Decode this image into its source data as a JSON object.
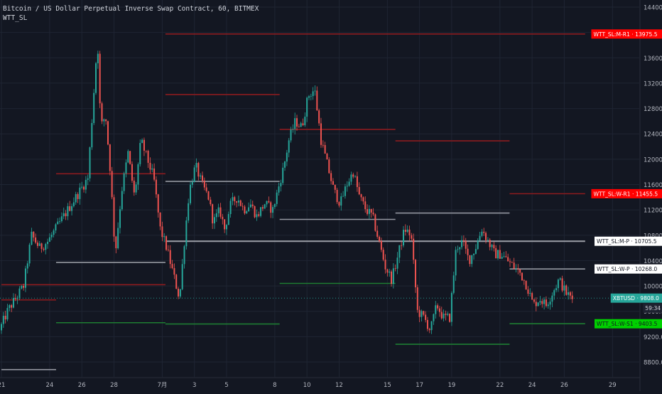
{
  "header": {
    "symbol_line": "Bitcoin / US Dollar Perpetual Inverse Swap Contract, 60, BITMEX",
    "indicator_name": "WTT_SL"
  },
  "colors": {
    "background": "#131722",
    "grid": "#1f2533",
    "up": "#26a69a",
    "down": "#ef5350",
    "resistance_line": "#8b1b1f",
    "pivot_line": "#9598a1",
    "support_line": "#1e7d32",
    "text": "#b2b5be",
    "red_tag": "#ff0000",
    "green_tag": "#00d000",
    "teal_tag": "#26a69a"
  },
  "chart_data": {
    "type": "candlestick",
    "symbol": "XBTUSD",
    "timeframe": "60",
    "exchange": "BITMEX",
    "price_range": [
      8550,
      14600
    ],
    "price_ticks": [
      8800.0,
      9200.0,
      9600.0,
      10000.0,
      10400.0,
      10800.0,
      11200.0,
      11600.0,
      12000.0,
      12400.0,
      12800.0,
      13200.0,
      13600.0,
      14000.0,
      14400.0
    ],
    "x_ticks": [
      {
        "day": 0,
        "label": "21"
      },
      {
        "day": 3,
        "label": "24"
      },
      {
        "day": 5,
        "label": "26"
      },
      {
        "day": 7,
        "label": "28"
      },
      {
        "day": 10,
        "label": "7月"
      },
      {
        "day": 12,
        "label": "3"
      },
      {
        "day": 14,
        "label": "5"
      },
      {
        "day": 17,
        "label": "8"
      },
      {
        "day": 19,
        "label": "10"
      },
      {
        "day": 21,
        "label": "12"
      },
      {
        "day": 24,
        "label": "15"
      },
      {
        "day": 26,
        "label": "17"
      },
      {
        "day": 28,
        "label": "19"
      },
      {
        "day": 31,
        "label": "22"
      },
      {
        "day": 33,
        "label": "24"
      },
      {
        "day": 35,
        "label": "26"
      },
      {
        "day": 38,
        "label": "29"
      }
    ],
    "price_path": [
      [
        0.0,
        9300
      ],
      [
        0.5,
        9600
      ],
      [
        1.0,
        9800
      ],
      [
        1.5,
        10000
      ],
      [
        2.0,
        10800
      ],
      [
        2.5,
        10600
      ],
      [
        3.0,
        10700
      ],
      [
        3.5,
        10900
      ],
      [
        4.0,
        11100
      ],
      [
        4.5,
        11300
      ],
      [
        5.0,
        11500
      ],
      [
        5.5,
        11700
      ],
      [
        5.8,
        12800
      ],
      [
        6.1,
        13900
      ],
      [
        6.3,
        12500
      ],
      [
        6.6,
        12700
      ],
      [
        6.9,
        11800
      ],
      [
        7.2,
        10500
      ],
      [
        7.6,
        11500
      ],
      [
        8.0,
        12100
      ],
      [
        8.4,
        11400
      ],
      [
        8.8,
        12300
      ],
      [
        9.2,
        12000
      ],
      [
        9.6,
        11700
      ],
      [
        10.0,
        10900
      ],
      [
        10.4,
        10600
      ],
      [
        10.8,
        10200
      ],
      [
        11.2,
        9800
      ],
      [
        11.5,
        10700
      ],
      [
        11.8,
        11500
      ],
      [
        12.2,
        11900
      ],
      [
        12.6,
        11600
      ],
      [
        13.0,
        11400
      ],
      [
        13.3,
        11000
      ],
      [
        13.7,
        11200
      ],
      [
        14.0,
        10900
      ],
      [
        14.4,
        11300
      ],
      [
        14.8,
        11400
      ],
      [
        15.2,
        11200
      ],
      [
        15.6,
        11300
      ],
      [
        16.0,
        11100
      ],
      [
        16.5,
        11300
      ],
      [
        17.0,
        11200
      ],
      [
        17.3,
        11500
      ],
      [
        17.7,
        11900
      ],
      [
        18.0,
        12300
      ],
      [
        18.4,
        12600
      ],
      [
        18.8,
        12500
      ],
      [
        19.2,
        13000
      ],
      [
        19.6,
        13100
      ],
      [
        20.0,
        12300
      ],
      [
        20.4,
        11900
      ],
      [
        20.8,
        11500
      ],
      [
        21.2,
        11300
      ],
      [
        21.6,
        11600
      ],
      [
        22.0,
        11800
      ],
      [
        22.4,
        11400
      ],
      [
        22.8,
        11200
      ],
      [
        23.2,
        11100
      ],
      [
        23.6,
        10700
      ],
      [
        24.0,
        10300
      ],
      [
        24.4,
        10100
      ],
      [
        24.8,
        10500
      ],
      [
        25.2,
        10900
      ],
      [
        25.6,
        10800
      ],
      [
        26.0,
        9600
      ],
      [
        26.4,
        9500
      ],
      [
        26.8,
        9300
      ],
      [
        27.2,
        9700
      ],
      [
        27.6,
        9500
      ],
      [
        28.0,
        9500
      ],
      [
        28.4,
        10600
      ],
      [
        28.8,
        10700
      ],
      [
        29.2,
        10400
      ],
      [
        29.6,
        10600
      ],
      [
        30.0,
        10900
      ],
      [
        30.4,
        10700
      ],
      [
        30.8,
        10500
      ],
      [
        31.2,
        10500
      ],
      [
        31.6,
        10400
      ],
      [
        32.0,
        10300
      ],
      [
        32.4,
        10200
      ],
      [
        32.8,
        10000
      ],
      [
        33.2,
        9700
      ],
      [
        33.6,
        9800
      ],
      [
        34.0,
        9700
      ],
      [
        34.4,
        9900
      ],
      [
        34.8,
        10100
      ],
      [
        35.2,
        9900
      ],
      [
        35.6,
        9800
      ]
    ],
    "levels": [
      {
        "name": "WTT_SL:M-R1",
        "value": 13975.5,
        "style": "resistance",
        "segments": [
          [
            10.2,
            36.3
          ]
        ],
        "label": "WTT_SL:M-R1 · 13975.5",
        "tag": "red"
      },
      {
        "name": "W-R1 (prev)",
        "value": 13020,
        "style": "resistance",
        "segments": [
          [
            10.2,
            17.3
          ]
        ]
      },
      {
        "name": "W-R1 (prev)",
        "value": 12470,
        "style": "resistance",
        "segments": [
          [
            17.3,
            24.5
          ]
        ]
      },
      {
        "name": "W-R1 (prev)",
        "value": 12290,
        "style": "resistance",
        "segments": [
          [
            24.5,
            31.6
          ]
        ]
      },
      {
        "name": "W-R1 (prev)",
        "value": 11770,
        "style": "resistance",
        "segments": [
          [
            3.4,
            10.2
          ]
        ]
      },
      {
        "name": "WTT_SL:W-R1",
        "value": 11455.5,
        "style": "resistance",
        "segments": [
          [
            31.6,
            36.3
          ]
        ],
        "label": "WTT_SL:W-R1 · 11455.5",
        "tag": "red"
      },
      {
        "name": "M-R (prev)",
        "value": 10020,
        "style": "resistance",
        "segments": [
          [
            0.0,
            10.2
          ]
        ]
      },
      {
        "name": "level",
        "value": 9780,
        "style": "resistance",
        "segments": [
          [
            0.0,
            3.4
          ]
        ]
      },
      {
        "name": "W-P (prev)",
        "value": 11650,
        "style": "pivot",
        "segments": [
          [
            10.2,
            17.3
          ]
        ]
      },
      {
        "name": "W-P (prev)",
        "value": 11150,
        "style": "pivot",
        "segments": [
          [
            24.5,
            31.6
          ]
        ]
      },
      {
        "name": "W-P (prev)",
        "value": 11050,
        "style": "pivot",
        "segments": [
          [
            17.3,
            24.5
          ]
        ]
      },
      {
        "name": "WTT_SL:M-P",
        "value": 10705.5,
        "style": "pivot",
        "segments": [
          [
            10.2,
            36.3
          ]
        ],
        "label": "WTT_SL:M-P · 10705.5",
        "tag": "white",
        "thick": true
      },
      {
        "name": "W-P (prev)",
        "value": 10370,
        "style": "pivot",
        "segments": [
          [
            3.4,
            10.2
          ]
        ]
      },
      {
        "name": "WTT_SL:W-P",
        "value": 10268.0,
        "style": "pivot",
        "segments": [
          [
            31.6,
            36.3
          ]
        ],
        "label": "WTT_SL:W-P · 10268.0",
        "tag": "white"
      },
      {
        "name": "M-P (prev)",
        "value": 8680,
        "style": "pivot",
        "segments": [
          [
            0.0,
            3.4
          ]
        ]
      },
      {
        "name": "W-S1 (prev)",
        "value": 10040,
        "style": "support",
        "segments": [
          [
            17.3,
            24.5
          ]
        ]
      },
      {
        "name": "W-S1 (prev)",
        "value": 9420,
        "style": "support",
        "segments": [
          [
            3.4,
            10.2
          ]
        ]
      },
      {
        "name": "W-S1 (prev)",
        "value": 9400,
        "style": "support",
        "segments": [
          [
            10.2,
            17.3
          ]
        ]
      },
      {
        "name": "WTT_SL:W-S1",
        "value": 9403.5,
        "style": "support",
        "segments": [
          [
            31.6,
            36.3
          ]
        ],
        "label": "WTT_SL:W-S1 · 9403.5",
        "tag": "green"
      },
      {
        "name": "W-S1 (prev)",
        "value": 9080,
        "style": "support",
        "segments": [
          [
            24.5,
            31.6
          ]
        ]
      }
    ],
    "last_price": {
      "label": "XBTUSD",
      "value": 9808.0,
      "countdown": "59:34"
    },
    "label_texts": {
      "m_r1": "WTT_SL:M-R1 · 13975.5",
      "w_r1": "WTT_SL:W-R1 · 11455.5",
      "m_p": "WTT_SL:M-P · 10705.5",
      "w_p": "WTT_SL:W-P · 10268.0",
      "last": "XBTUSD · 9808.0",
      "countdown": "59:34",
      "w_s1": "WTT_SL:W-S1 · 9403.5"
    }
  }
}
